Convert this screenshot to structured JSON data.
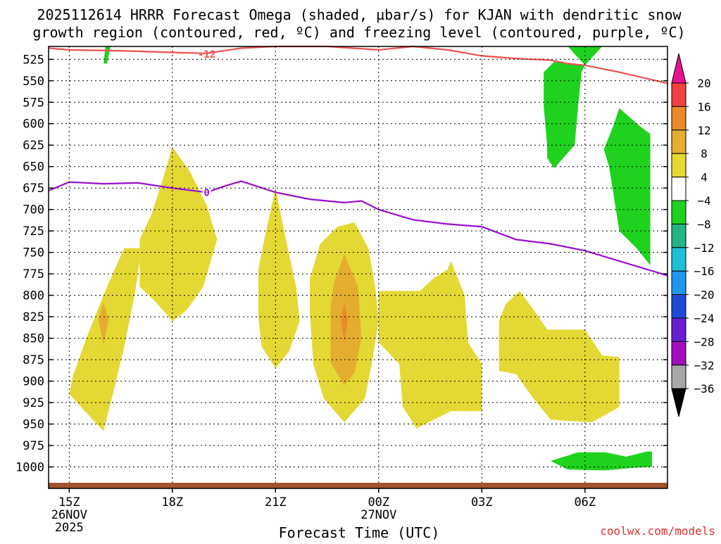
{
  "title": {
    "line1": "2025112614 HRRR Forecast Omega (shaded, µbar/s) for KJAN with dendritic snow",
    "line2": "growth region (contoured, red, ºC) and freezing level (contoured, purple, ºC)"
  },
  "footer": {
    "xlabel": "Forecast Time (UTC)",
    "credit": "coolwx.com/models"
  },
  "chart_data": {
    "type": "area",
    "title": "2025112614 HRRR Forecast Omega (shaded, µbar/s) for KJAN with dendritic snow growth region (contoured, red, ºC) and freezing level (contoured, purple, ºC)",
    "xlabel": "Forecast Time (UTC)",
    "ylabel": "",
    "xlim": [
      14.4,
      32.4
    ],
    "ylim": [
      510,
      1025
    ],
    "y_scale": "linear, inverted (pressure, hPa)",
    "grid": true,
    "x_ticks": [
      {
        "value": 15,
        "label": "15Z",
        "date": "26NOV",
        "year": "2025"
      },
      {
        "value": 18,
        "label": "18Z"
      },
      {
        "value": 21,
        "label": "21Z"
      },
      {
        "value": 24,
        "label": "00Z",
        "date": "27NOV"
      },
      {
        "value": 27,
        "label": "03Z"
      },
      {
        "value": 30,
        "label": "06Z"
      }
    ],
    "y_ticks": [
      525,
      550,
      575,
      600,
      625,
      650,
      675,
      700,
      725,
      750,
      775,
      800,
      825,
      850,
      875,
      900,
      925,
      950,
      975,
      1000
    ],
    "colorbar": {
      "levels": [
        -36,
        -32,
        -28,
        -24,
        -20,
        -16,
        -12,
        -8,
        -4,
        4,
        8,
        12,
        16,
        20
      ],
      "labels": [
        "20",
        "16",
        "12",
        "8",
        "4",
        "−4",
        "−8",
        "−12",
        "−16",
        "−20",
        "−24",
        "−28",
        "−32",
        "−36"
      ],
      "bins": [
        {
          "lo": 20,
          "hi": null,
          "color": "#e8138f"
        },
        {
          "lo": 16,
          "hi": 20,
          "color": "#f04040"
        },
        {
          "lo": 12,
          "hi": 16,
          "color": "#ec8a2a"
        },
        {
          "lo": 8,
          "hi": 12,
          "color": "#e4ad30"
        },
        {
          "lo": 4,
          "hi": 8,
          "color": "#e4d834"
        },
        {
          "lo": -4,
          "hi": 4,
          "color": "#ffffff"
        },
        {
          "lo": -8,
          "hi": -4,
          "color": "#1ed21e"
        },
        {
          "lo": -12,
          "hi": -8,
          "color": "#22b484"
        },
        {
          "lo": -16,
          "hi": -12,
          "color": "#1ec0d8"
        },
        {
          "lo": -20,
          "hi": -16,
          "color": "#1e96f0"
        },
        {
          "lo": -24,
          "hi": -20,
          "color": "#1e4ad8"
        },
        {
          "lo": -28,
          "hi": -24,
          "color": "#6a1ed4"
        },
        {
          "lo": -32,
          "hi": -28,
          "color": "#a40ec0"
        },
        {
          "lo": -36,
          "hi": -32,
          "color": "#a8a8a8"
        },
        {
          "lo": null,
          "hi": -36,
          "color": "#000000"
        }
      ]
    },
    "shaded_regions": [
      {
        "level": "4 to 8",
        "color": "#e4d834",
        "polygon": [
          [
            17.05,
            745
          ],
          [
            16.6,
            745
          ],
          [
            16.1,
            790
          ],
          [
            15.5,
            850
          ],
          [
            15.1,
            895
          ],
          [
            15.0,
            915
          ],
          [
            15.8,
            950
          ],
          [
            16.0,
            958
          ],
          [
            16.3,
            910
          ],
          [
            16.6,
            860
          ],
          [
            16.9,
            800
          ],
          [
            17.05,
            760
          ]
        ]
      },
      {
        "level": "4 to 8",
        "color": "#e4d834",
        "polygon": [
          [
            18.0,
            627
          ],
          [
            18.5,
            655
          ],
          [
            19.0,
            695
          ],
          [
            19.3,
            735
          ],
          [
            18.9,
            790
          ],
          [
            18.4,
            818
          ],
          [
            18.0,
            830
          ],
          [
            17.5,
            807
          ],
          [
            17.05,
            790
          ],
          [
            17.05,
            735
          ],
          [
            17.4,
            705
          ],
          [
            17.7,
            668
          ]
        ]
      },
      {
        "level": "4 to 8",
        "color": "#e4d834",
        "polygon": [
          [
            21.0,
            675
          ],
          [
            21.3,
            735
          ],
          [
            21.6,
            790
          ],
          [
            21.7,
            830
          ],
          [
            21.4,
            865
          ],
          [
            21.0,
            885
          ],
          [
            20.6,
            860
          ],
          [
            20.5,
            825
          ],
          [
            20.5,
            770
          ],
          [
            20.7,
            730
          ]
        ]
      },
      {
        "level": "4 to 8",
        "color": "#e4d834",
        "polygon": [
          [
            23.3,
            715
          ],
          [
            23.7,
            745
          ],
          [
            23.9,
            790
          ],
          [
            24.0,
            830
          ],
          [
            23.8,
            880
          ],
          [
            23.6,
            920
          ],
          [
            23.0,
            948
          ],
          [
            22.4,
            920
          ],
          [
            22.1,
            880
          ],
          [
            22.0,
            820
          ],
          [
            22.0,
            780
          ],
          [
            22.3,
            740
          ],
          [
            22.8,
            720
          ]
        ]
      },
      {
        "level": "8 to 12",
        "color": "#e4ad30",
        "polygon": [
          [
            23.0,
            752
          ],
          [
            23.4,
            790
          ],
          [
            23.5,
            850
          ],
          [
            23.3,
            890
          ],
          [
            23.0,
            905
          ],
          [
            22.6,
            878
          ],
          [
            22.6,
            815
          ],
          [
            22.7,
            785
          ]
        ]
      },
      {
        "level": "12 to 16",
        "color": "#ec8a2a",
        "polygon": [
          [
            23.0,
            808
          ],
          [
            23.1,
            828
          ],
          [
            23.0,
            855
          ],
          [
            22.9,
            828
          ]
        ]
      },
      {
        "level": "8 to 12",
        "color": "#e4ad30",
        "polygon": [
          [
            16.0,
            808
          ],
          [
            16.15,
            828
          ],
          [
            16.0,
            858
          ],
          [
            15.85,
            828
          ]
        ]
      },
      {
        "level": "4 to 8",
        "color": "#e4d834",
        "polygon": [
          [
            25.2,
            795
          ],
          [
            25.6,
            780
          ],
          [
            26.0,
            770
          ],
          [
            26.1,
            760
          ],
          [
            26.5,
            800
          ],
          [
            26.6,
            855
          ],
          [
            27.0,
            880
          ],
          [
            27.0,
            935
          ],
          [
            26.1,
            935
          ],
          [
            25.1,
            955
          ],
          [
            24.7,
            930
          ],
          [
            24.6,
            880
          ],
          [
            24.0,
            855
          ],
          [
            24.0,
            795
          ]
        ]
      },
      {
        "level": "4 to 8",
        "color": "#e4d834",
        "polygon": [
          [
            27.7,
            810
          ],
          [
            28.1,
            795
          ],
          [
            28.6,
            822
          ],
          [
            28.9,
            840
          ],
          [
            30.0,
            840
          ],
          [
            30.5,
            870
          ],
          [
            31.0,
            872
          ],
          [
            31.0,
            930
          ],
          [
            30.2,
            948
          ],
          [
            29.0,
            945
          ],
          [
            28.5,
            920
          ],
          [
            28.0,
            892
          ],
          [
            27.5,
            888
          ],
          [
            27.5,
            830
          ]
        ]
      },
      {
        "level": "-4 to -8",
        "color": "#1ed21e",
        "polygon": [
          [
            16.05,
            510
          ],
          [
            16.2,
            510
          ],
          [
            16.1,
            530
          ],
          [
            16.0,
            530
          ]
        ]
      },
      {
        "level": "-4 to -8",
        "color": "#1ed21e",
        "polygon": [
          [
            29.5,
            510
          ],
          [
            30.5,
            510
          ],
          [
            30.0,
            532
          ],
          [
            29.1,
            528
          ],
          [
            28.8,
            540
          ],
          [
            28.8,
            560
          ],
          [
            28.8,
            580
          ],
          [
            28.9,
            625
          ],
          [
            28.9,
            640
          ],
          [
            29.1,
            652
          ],
          [
            29.7,
            625
          ],
          [
            29.8,
            580
          ],
          [
            29.9,
            540
          ],
          [
            30.0,
            532
          ]
        ]
      },
      {
        "level": "-4 to -8",
        "color": "#1ed21e",
        "polygon": [
          [
            31.0,
            582
          ],
          [
            31.6,
            603
          ],
          [
            31.9,
            612
          ],
          [
            31.9,
            765
          ],
          [
            31.5,
            745
          ],
          [
            31.0,
            725
          ],
          [
            30.7,
            650
          ],
          [
            30.55,
            630
          ],
          [
            30.8,
            605
          ]
        ]
      },
      {
        "level": "-4 to -8",
        "color": "#1ed21e",
        "polygon": [
          [
            29.0,
            993
          ],
          [
            29.8,
            983
          ],
          [
            30.6,
            983
          ],
          [
            31.2,
            988
          ],
          [
            31.8,
            982
          ],
          [
            31.95,
            982
          ],
          [
            31.95,
            1000
          ],
          [
            31.4,
            1001
          ],
          [
            30.6,
            1004
          ],
          [
            29.5,
            1003
          ]
        ]
      }
    ],
    "contours": [
      {
        "name": "dendritic snow growth region",
        "label": "-12",
        "color": "#f05050",
        "x": [
          14.4,
          15.0,
          16.5,
          18.0,
          19.0,
          20.0,
          21.0,
          22.5,
          24.0,
          25.0,
          26.0,
          27.0,
          28.0,
          29.0,
          29.5,
          30.0,
          31.0,
          32.4
        ],
        "y": [
          512,
          514,
          515,
          517,
          518,
          512,
          510,
          510,
          514,
          510,
          514,
          521,
          524,
          526,
          530,
          532,
          540,
          553
        ]
      },
      {
        "name": "freezing level",
        "label": "0",
        "color": "#9a0ed0",
        "x": [
          14.4,
          15.0,
          16.0,
          17.0,
          18.0,
          19.0,
          19.5,
          20.0,
          21.0,
          22.0,
          23.0,
          23.5,
          24.0,
          25.0,
          26.0,
          27.0,
          28.0,
          29.0,
          30.0,
          31.0,
          32.4
        ],
        "y": [
          678,
          668,
          670,
          669,
          675,
          680,
          673,
          667,
          680,
          688,
          692,
          690,
          700,
          712,
          717,
          720,
          735,
          740,
          748,
          760,
          777
        ]
      }
    ]
  }
}
